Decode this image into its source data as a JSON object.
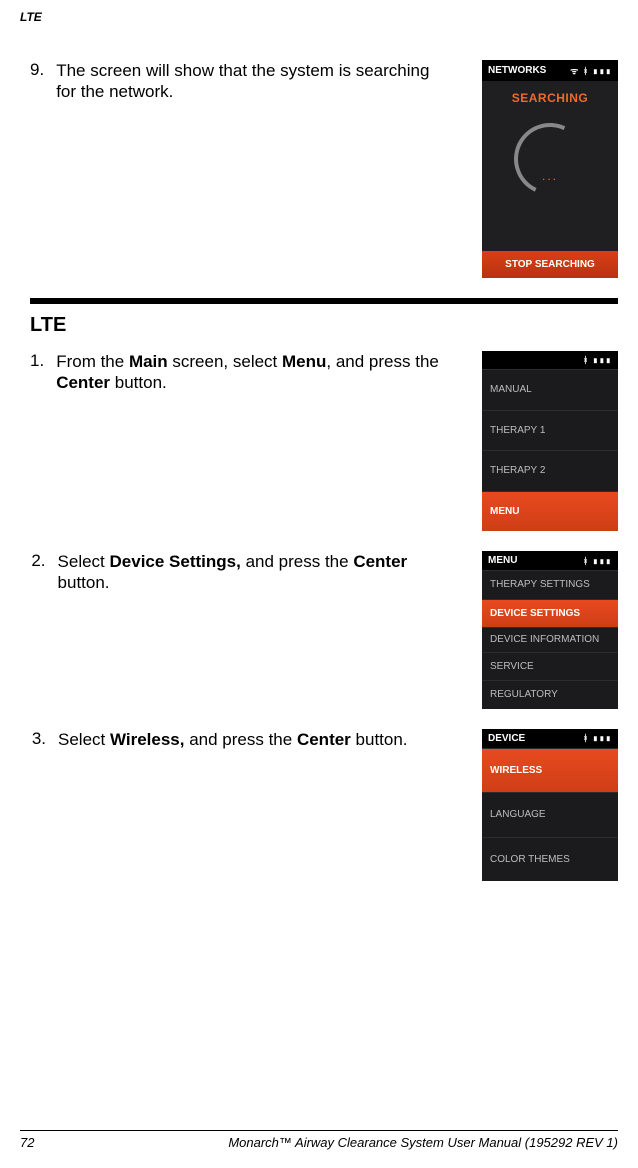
{
  "page_header": "LTE",
  "section_title": "LTE",
  "steps_top": {
    "num": "9.",
    "text_parts": [
      "The screen will show that the system is searching for the network."
    ]
  },
  "steps_lte": [
    {
      "num": "1.",
      "parts": [
        "From the ",
        "Main",
        " screen, select ",
        "Menu",
        ", and press the ",
        "Center",
        " button."
      ]
    },
    {
      "num": "2.",
      "parts": [
        "Select ",
        "Device Settings,",
        " and press the ",
        "Center",
        " button."
      ]
    },
    {
      "num": "3.",
      "parts": [
        "Select ",
        "Wireless,",
        " and press the ",
        "Center",
        " button."
      ]
    }
  ],
  "screens": {
    "networks": {
      "header_title": "NETWORKS",
      "header_icons": "ᯤ ᚼ ▮▮▮",
      "searching": "SEARCHING",
      "dots": "...",
      "stop": "STOP SEARCHING"
    },
    "main_menu": {
      "header_title": "",
      "header_icons": "ᚼ ▮▮▮",
      "items": [
        "MANUAL",
        "THERAPY 1",
        "THERAPY 2",
        "MENU"
      ],
      "selected_index": 3
    },
    "menu": {
      "header_title": "MENU",
      "header_icons": "ᚼ ▮▮▮",
      "items": [
        "THERAPY SETTINGS",
        "DEVICE SETTINGS",
        "DEVICE INFORMATION",
        "SERVICE",
        "REGULATORY"
      ],
      "selected_index": 1
    },
    "device": {
      "header_title": "DEVICE",
      "header_icons": "ᚼ ▮▮▮",
      "items": [
        "WIRELESS",
        "LANGUAGE",
        "COLOR THEMES"
      ],
      "selected_index": 0
    }
  },
  "footer": {
    "page": "72",
    "title": "Monarch™ Airway Clearance System User Manual (195292 REV 1)"
  }
}
